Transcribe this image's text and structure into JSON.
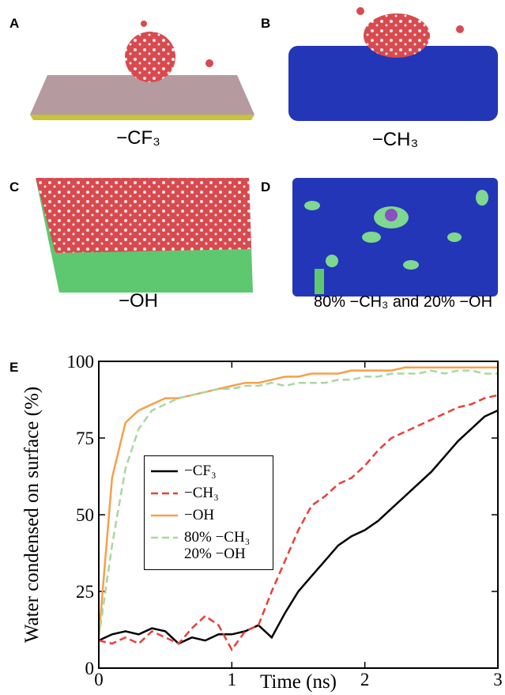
{
  "panels": [
    {
      "label": "A",
      "caption": "−CF₃"
    },
    {
      "label": "B",
      "caption": "−CH₃"
    },
    {
      "label": "C",
      "caption": "−OH"
    },
    {
      "label": "D",
      "caption": "80% −CH₃ and 20% −OH"
    }
  ],
  "chart_data": {
    "type": "line",
    "label": "E",
    "x_label": "Time (ns)",
    "y_label": "Water condensed on surface (%)",
    "xlim": [
      0,
      3
    ],
    "xticks": [
      0,
      1,
      2,
      3
    ],
    "ylim": [
      0,
      100
    ],
    "yticks": [
      0,
      25,
      50,
      75,
      100
    ],
    "x": [
      0,
      0.1,
      0.2,
      0.3,
      0.4,
      0.5,
      0.6,
      0.7,
      0.8,
      0.9,
      1.0,
      1.1,
      1.2,
      1.3,
      1.4,
      1.5,
      1.6,
      1.7,
      1.8,
      1.9,
      2.0,
      2.1,
      2.2,
      2.3,
      2.4,
      2.5,
      2.6,
      2.7,
      2.8,
      2.9,
      3.0
    ],
    "series": [
      {
        "name": "−CF₃",
        "color": "#000000",
        "linestyle": "solid",
        "values": [
          9,
          11,
          12,
          11,
          13,
          12,
          8,
          10,
          9,
          11,
          11,
          12,
          14,
          10,
          18,
          25,
          30,
          35,
          40,
          43,
          45,
          48,
          52,
          56,
          60,
          64,
          69,
          74,
          78,
          82,
          84
        ]
      },
      {
        "name": "−CH₃",
        "color": "#e8403a",
        "linestyle": "dashed",
        "values": [
          9,
          8,
          10,
          8,
          12,
          10,
          8,
          13,
          17,
          14,
          6,
          12,
          14,
          25,
          35,
          45,
          53,
          56,
          60,
          62,
          66,
          71,
          75,
          77,
          79,
          81,
          83,
          85,
          86,
          88,
          89
        ]
      },
      {
        "name": "−OH",
        "color": "#f5a04a",
        "linestyle": "solid",
        "values": [
          10,
          62,
          80,
          84,
          86,
          88,
          88,
          89,
          90,
          91,
          92,
          93,
          93,
          94,
          95,
          95,
          96,
          96,
          96,
          97,
          97,
          97,
          97,
          98,
          98,
          98,
          98,
          98,
          98,
          98,
          98
        ]
      },
      {
        "name": "80% −CH₃ 20% −OH",
        "color": "#a8d8a0",
        "linestyle": "dashed",
        "values": [
          10,
          40,
          65,
          78,
          84,
          86,
          88,
          89,
          90,
          91,
          91,
          92,
          92,
          93,
          92,
          93,
          93,
          93,
          94,
          94,
          95,
          95,
          96,
          96,
          96,
          97,
          96,
          97,
          97,
          96,
          96
        ]
      }
    ]
  }
}
